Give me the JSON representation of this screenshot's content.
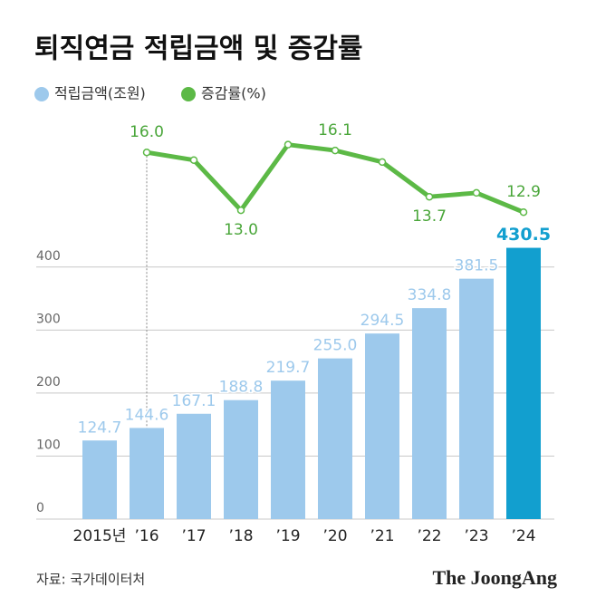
{
  "chart_data": {
    "type": "bar-line",
    "title": "퇴직연금 적립금액 및 증감률",
    "categories": [
      "2015년",
      "’16",
      "’17",
      "’18",
      "’19",
      "’20",
      "’21",
      "’22",
      "’23",
      "’24"
    ],
    "series": [
      {
        "name": "적립금액(조원)",
        "type": "bar",
        "color": "#9dc9ec",
        "colors": [
          "#9dc9ec",
          "#9dc9ec",
          "#9dc9ec",
          "#9dc9ec",
          "#9dc9ec",
          "#9dc9ec",
          "#9dc9ec",
          "#9dc9ec",
          "#9dc9ec",
          "#129fcf"
        ],
        "values": [
          124.7,
          144.6,
          167.1,
          188.8,
          219.7,
          255,
          294.5,
          334.8,
          381.5,
          430.5
        ],
        "value_labels": [
          "124.7",
          "144.6",
          "167.1",
          "188.8",
          "219.7",
          "255.0",
          "294.5",
          "334.8",
          "381.5",
          "430.5"
        ]
      },
      {
        "name": "증감률(%)",
        "type": "line",
        "axis": "y2",
        "color": "#5cb946",
        "values": [
          null,
          16,
          15.6,
          13,
          16.4,
          16.1,
          15.5,
          13.7,
          13.9,
          12.9
        ],
        "value_labels": [
          null,
          "16.0",
          null,
          "13.0",
          null,
          "16.1",
          null,
          "13.7",
          null,
          "12.9"
        ]
      }
    ],
    "ylim": [
      0,
      450
    ],
    "yticks": [
      0,
      100,
      200,
      300,
      400
    ],
    "grid": true,
    "y2lim": [
      10,
      20
    ],
    "source": "자료: 국가데이터처",
    "logo": "The JoongAng"
  }
}
